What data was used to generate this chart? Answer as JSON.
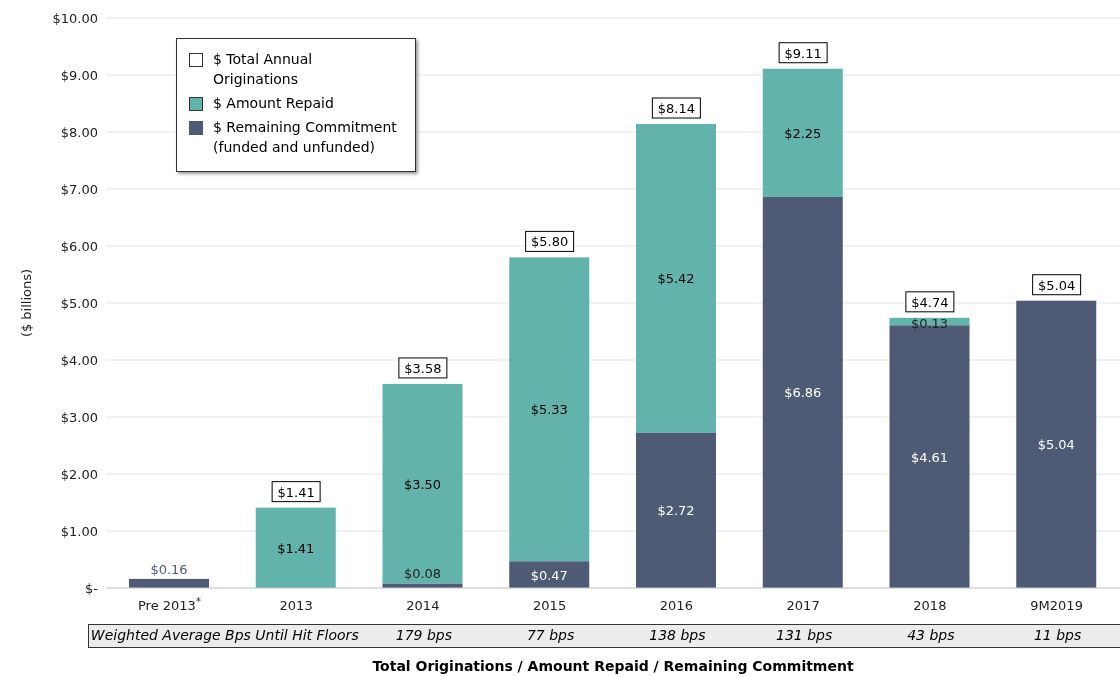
{
  "chart_data": {
    "type": "bar",
    "stacked": true,
    "xlabel": "Total Originations / Amount Repaid / Remaining Commitment",
    "ylabel": "($ billions)",
    "categories": [
      "Pre 2013$^{*}$",
      "2013",
      "2014",
      "2015",
      "2016",
      "2017",
      "2018",
      "9M2019"
    ],
    "series": [
      {
        "name": "$ Remaining Commitment (funded and unfunded)",
        "color": "#4f5b75",
        "values": [
          0.16,
          null,
          0.08,
          0.47,
          2.72,
          6.86,
          4.61,
          5.04
        ],
        "value_labels": [
          "$0.16",
          null,
          "$0.08",
          "$0.47",
          "$2.72",
          "$6.86",
          "$4.61",
          "$5.04"
        ]
      },
      {
        "name": "$ Amount Repaid",
        "color": "#62b3ac",
        "values": [
          null,
          1.41,
          3.5,
          5.33,
          5.42,
          2.25,
          0.13,
          null
        ],
        "value_labels": [
          null,
          "$1.41",
          "$3.50",
          "$5.33",
          "$5.42",
          "$2.25",
          "$0.13",
          null
        ]
      },
      {
        "name": "$ Total Annual Originations",
        "color": "#ffffff",
        "values": [
          null,
          null,
          null,
          null,
          null,
          null,
          null,
          null
        ]
      }
    ],
    "totals": [
      null,
      "$1.41",
      "$3.58",
      "$5.80",
      "$8.14",
      "$9.11",
      "$4.74",
      "$5.04"
    ],
    "ylim": [
      0,
      10
    ],
    "yticks": [
      {
        "value": 0,
        "label": "$-"
      },
      {
        "value": 1,
        "label": "$1.00"
      },
      {
        "value": 2,
        "label": "$2.00"
      },
      {
        "value": 3,
        "label": "$3.00"
      },
      {
        "value": 4,
        "label": "$4.00"
      },
      {
        "value": 5,
        "label": "$5.00"
      },
      {
        "value": 6,
        "label": "$6.00"
      },
      {
        "value": 7,
        "label": "$7.00"
      },
      {
        "value": 8,
        "label": "$8.00"
      },
      {
        "value": 9,
        "label": "$9.00"
      },
      {
        "value": 10,
        "label": "$10.00"
      }
    ],
    "grid": "y",
    "legend": "top left",
    "annotations": [
      "Weighted Average Bps Until Hit Floors",
      "179 bps",
      "77 bps",
      "138 bps",
      "131 bps",
      "43 bps",
      "11 bps"
    ]
  }
}
